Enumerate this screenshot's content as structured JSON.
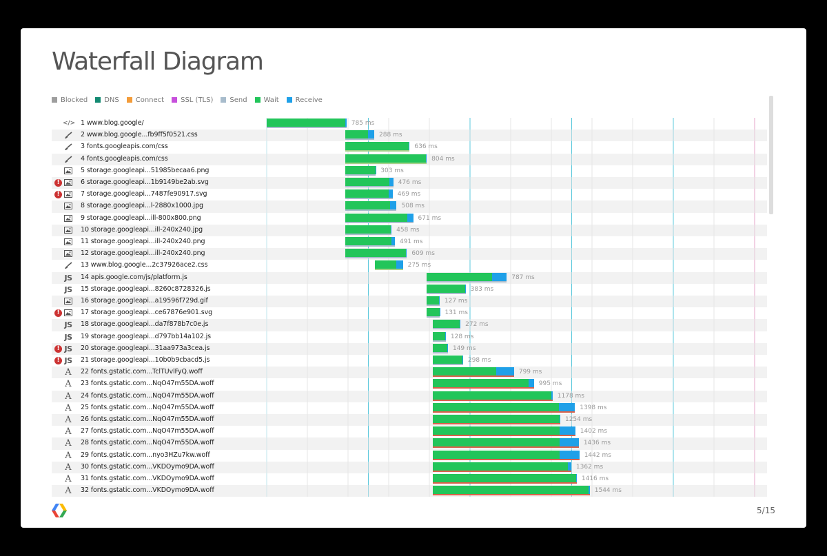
{
  "slide": {
    "title": "Waterfall Diagram",
    "page_number": "5/15"
  },
  "legend": [
    {
      "label": "Blocked",
      "color": "#9e9e9e"
    },
    {
      "label": "DNS",
      "color": "#138a72"
    },
    {
      "label": "Connect",
      "color": "#f39c3a"
    },
    {
      "label": "SSL (TLS)",
      "color": "#c750dc"
    },
    {
      "label": "Send",
      "color": "#a8bccc"
    },
    {
      "label": "Wait",
      "color": "#22c55a"
    },
    {
      "label": "Receive",
      "color": "#1fa0e8"
    }
  ],
  "chart_data": {
    "type": "waterfall",
    "unit": "ms",
    "requests": [
      {
        "label": "1 www.blog.google/",
        "type": "html",
        "error": false,
        "start": 0,
        "wait": 770,
        "receive": 15,
        "total": "785 ms"
      },
      {
        "label": "2 www.blog.google...fb9ff5f0521.css",
        "type": "css",
        "error": false,
        "start": 770,
        "wait": 225,
        "receive": 63,
        "total": "288 ms"
      },
      {
        "label": "3 fonts.googleapis.com/css",
        "type": "css",
        "error": false,
        "start": 770,
        "wait": 628,
        "receive": 8,
        "total": "636 ms"
      },
      {
        "label": "4 fonts.googleapis.com/css",
        "type": "css",
        "error": false,
        "start": 770,
        "wait": 797,
        "receive": 7,
        "total": "804 ms"
      },
      {
        "label": "5 storage.googleapi...51985becaa6.png",
        "type": "image",
        "error": false,
        "start": 770,
        "wait": 298,
        "receive": 5,
        "total": "303 ms"
      },
      {
        "label": "6 storage.googleapi...1b9149be2ab.svg",
        "type": "image",
        "error": true,
        "start": 770,
        "wait": 440,
        "receive": 36,
        "total": "476 ms"
      },
      {
        "label": "7 storage.googleapi...7487fe90917.svg",
        "type": "image",
        "error": true,
        "start": 770,
        "wait": 432,
        "receive": 37,
        "total": "469 ms"
      },
      {
        "label": "8 storage.googleapi...l-2880x1000.jpg",
        "type": "image",
        "error": false,
        "start": 770,
        "wait": 447,
        "receive": 61,
        "total": "508 ms"
      },
      {
        "label": "9 storage.googleapi...ill-800x800.png",
        "type": "image",
        "error": false,
        "start": 770,
        "wait": 614,
        "receive": 57,
        "total": "671 ms"
      },
      {
        "label": "10 storage.googleapi...ill-240x240.jpg",
        "type": "image",
        "error": false,
        "start": 770,
        "wait": 450,
        "receive": 8,
        "total": "458 ms"
      },
      {
        "label": "11 storage.googleapi...ill-240x240.png",
        "type": "image",
        "error": false,
        "start": 770,
        "wait": 460,
        "receive": 31,
        "total": "491 ms"
      },
      {
        "label": "12 storage.googleapi...ill-240x240.png",
        "type": "image",
        "error": false,
        "start": 770,
        "wait": 600,
        "receive": 9,
        "total": "609 ms"
      },
      {
        "label": "13 www.blog.google...2c37926ace2.css",
        "type": "css",
        "error": false,
        "start": 1065,
        "wait": 210,
        "receive": 65,
        "total": "275 ms"
      },
      {
        "label": "14 apis.google.com/js/platform.js",
        "type": "js",
        "error": false,
        "start": 1574,
        "wait": 640,
        "receive": 147,
        "total": "787 ms"
      },
      {
        "label": "15 storage.googleapi...8260c8728326.js",
        "type": "js",
        "error": false,
        "start": 1574,
        "wait": 377,
        "receive": 6,
        "total": "383 ms"
      },
      {
        "label": "16 storage.googleapi...a19596f729d.gif",
        "type": "image",
        "error": false,
        "start": 1574,
        "wait": 122,
        "receive": 5,
        "total": "127 ms"
      },
      {
        "label": "17 storage.googleapi...ce67876e901.svg",
        "type": "image",
        "error": true,
        "start": 1574,
        "wait": 126,
        "receive": 5,
        "total": "131 ms"
      },
      {
        "label": "18 storage.googleapi...da7f878b7c0e.js",
        "type": "js",
        "error": false,
        "start": 1634,
        "wait": 267,
        "receive": 5,
        "total": "272 ms"
      },
      {
        "label": "19 storage.googleapi...d797bb14a102.js",
        "type": "js",
        "error": false,
        "start": 1634,
        "wait": 124,
        "receive": 4,
        "total": "128 ms"
      },
      {
        "label": "20 storage.googleapi...31aa973a3cea.js",
        "type": "js",
        "error": true,
        "start": 1634,
        "wait": 144,
        "receive": 5,
        "total": "149 ms"
      },
      {
        "label": "21 storage.googleapi...10b0b9cbacd5.js",
        "type": "js",
        "error": true,
        "start": 1634,
        "wait": 293,
        "receive": 5,
        "total": "298 ms"
      },
      {
        "label": "22 fonts.gstatic.com...TclTUvlFyQ.woff",
        "type": "font",
        "error": false,
        "start": 1634,
        "wait": 622,
        "receive": 177,
        "total": "799 ms"
      },
      {
        "label": "23 fonts.gstatic.com...NqO47m55DA.woff",
        "type": "font",
        "error": false,
        "start": 1634,
        "wait": 940,
        "receive": 55,
        "total": "995 ms"
      },
      {
        "label": "24 fonts.gstatic.com...NqO47m55DA.woff",
        "type": "font",
        "error": false,
        "start": 1634,
        "wait": 1168,
        "receive": 10,
        "total": "1178 ms"
      },
      {
        "label": "25 fonts.gstatic.com...NqO47m55DA.woff",
        "type": "font",
        "error": false,
        "start": 1634,
        "wait": 1240,
        "receive": 158,
        "total": "1398 ms"
      },
      {
        "label": "26 fonts.gstatic.com...NqO47m55DA.woff",
        "type": "font",
        "error": false,
        "start": 1634,
        "wait": 1249,
        "receive": 5,
        "total": "1254 ms"
      },
      {
        "label": "27 fonts.gstatic.com...NqO47m55DA.woff",
        "type": "font",
        "error": false,
        "start": 1634,
        "wait": 1250,
        "receive": 152,
        "total": "1402 ms"
      },
      {
        "label": "28 fonts.gstatic.com...NqO47m55DA.woff",
        "type": "font",
        "error": false,
        "start": 1634,
        "wait": 1250,
        "receive": 186,
        "total": "1436 ms"
      },
      {
        "label": "29 fonts.gstatic.com...nyo3HZu7kw.woff",
        "type": "font",
        "error": false,
        "start": 1634,
        "wait": 1250,
        "receive": 192,
        "total": "1442 ms"
      },
      {
        "label": "30 fonts.gstatic.com...VKDOymo9DA.woff",
        "type": "font",
        "error": false,
        "start": 1634,
        "wait": 1330,
        "receive": 32,
        "total": "1362 ms"
      },
      {
        "label": "31 fonts.gstatic.com...VKDOymo9DA.woff",
        "type": "font",
        "error": false,
        "start": 1634,
        "wait": 1410,
        "receive": 6,
        "total": "1416 ms"
      },
      {
        "label": "32 fonts.gstatic.com...VKDOymo9DA.woff",
        "type": "font",
        "error": false,
        "start": 1634,
        "wait": 1530,
        "receive": 14,
        "total": "1544 ms"
      }
    ],
    "time_markers": [
      {
        "ms": 1000,
        "color": "#5bc8dc"
      },
      {
        "ms": 2000,
        "color": "#5bc8dc"
      },
      {
        "ms": 3000,
        "color": "#5bc8dc"
      },
      {
        "ms": 4000,
        "color": "#5bc8dc"
      },
      {
        "ms": 4800,
        "color": "#e6a6c8"
      }
    ],
    "ms_per_tick": 100
  },
  "colors": {
    "wait": "#22c55a",
    "receive": "#1fa0e8",
    "send_under": "#a8bccc",
    "font_under": "#d9614a",
    "css_under": "#a6d28a",
    "grid": "#e6e6e6",
    "error": "#cc3333"
  },
  "icons": {
    "html": "code-icon",
    "css": "brush-icon",
    "image": "image-icon",
    "js": "js-icon",
    "font": "font-icon",
    "error": "error-icon",
    "logo": "google-logo"
  },
  "type_glyphs": {
    "html": "</>",
    "js": "JS",
    "font": "A",
    "error": "!"
  }
}
